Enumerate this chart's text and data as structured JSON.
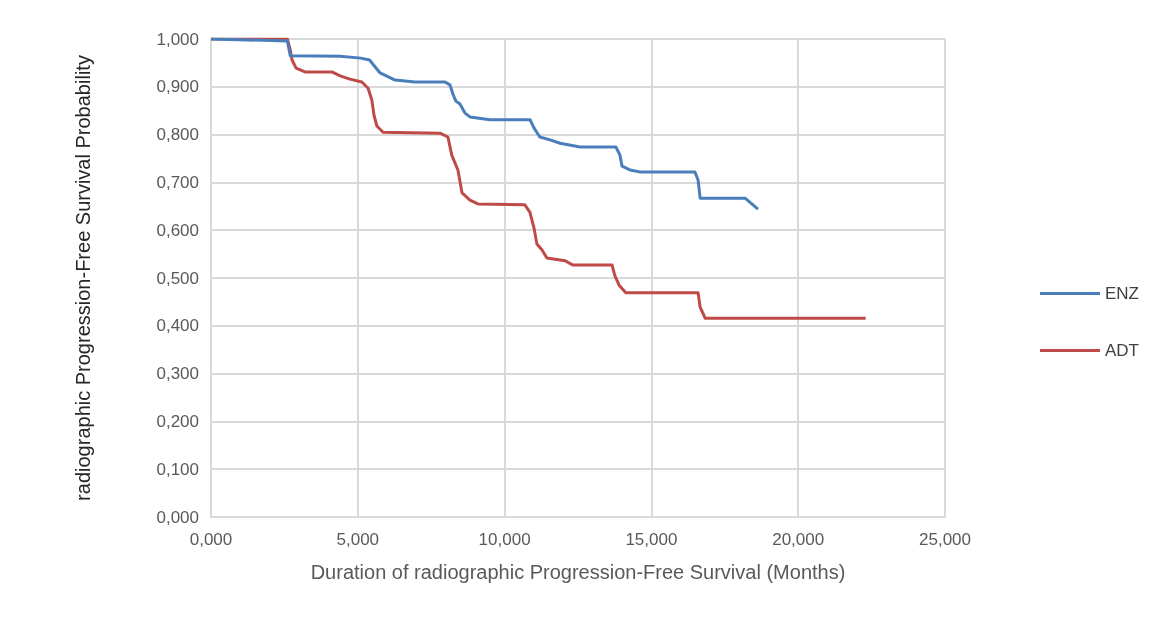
{
  "chart_data": {
    "type": "line",
    "xlabel": "Duration of radiographic Progression-Free Survival (Months)",
    "ylabel": "radiographic Progression-Free Survival Probability",
    "xlim": [
      0,
      25
    ],
    "xticks": [
      {
        "value": 0,
        "label": "0,000"
      },
      {
        "value": 5,
        "label": "5,000"
      },
      {
        "value": 10,
        "label": "10,000"
      },
      {
        "value": 15,
        "label": "15,000"
      },
      {
        "value": 20,
        "label": "20,000"
      },
      {
        "value": 25,
        "label": "25,000"
      }
    ],
    "ylim": [
      0,
      1
    ],
    "yticks": [
      {
        "value": 0,
        "label": "0,000"
      },
      {
        "value": 0.1,
        "label": "0,100"
      },
      {
        "value": 0.2,
        "label": "0,200"
      },
      {
        "value": 0.3,
        "label": "0,300"
      },
      {
        "value": 0.4,
        "label": "0,400"
      },
      {
        "value": 0.5,
        "label": "0,500"
      },
      {
        "value": 0.6,
        "label": "0,600"
      },
      {
        "value": 0.7,
        "label": "0,700"
      },
      {
        "value": 0.8,
        "label": "0,800"
      },
      {
        "value": 0.9,
        "label": "0,900"
      },
      {
        "value": 1,
        "label": "1,000"
      }
    ],
    "grid": true,
    "legend": "right",
    "marker": "none",
    "series": [
      {
        "name": "ENZ",
        "color": "#4a7ebb",
        "x": [
          0,
          2.6,
          2.7,
          4.4,
          5.1,
          5.4,
          5.6,
          5.76,
          6.27,
          6.95,
          7.97,
          8.14,
          8.24,
          8.34,
          8.48,
          8.65,
          8.82,
          9.5,
          10.87,
          11.0,
          11.2,
          11.55,
          11.89,
          12.57,
          13.79,
          13.93,
          14.0,
          14.27,
          14.6,
          16.48,
          16.59,
          16.66,
          18.19,
          18.63
        ],
        "values": [
          1.0,
          0.996,
          0.965,
          0.964,
          0.96,
          0.956,
          0.941,
          0.929,
          0.914,
          0.91,
          0.91,
          0.904,
          0.885,
          0.87,
          0.864,
          0.845,
          0.837,
          0.831,
          0.831,
          0.814,
          0.795,
          0.789,
          0.782,
          0.774,
          0.774,
          0.757,
          0.734,
          0.726,
          0.722,
          0.722,
          0.705,
          0.667,
          0.667,
          0.644
        ]
      },
      {
        "name": "ADT",
        "color": "#be4b48",
        "x": [
          0,
          2.6,
          2.7,
          2.76,
          2.9,
          3.2,
          4.12,
          4.4,
          4.73,
          5.14,
          5.35,
          5.48,
          5.55,
          5.65,
          5.86,
          7.8,
          8.07,
          8.2,
          8.41,
          8.55,
          8.82,
          9.09,
          10.69,
          10.86,
          11.0,
          11.1,
          11.27,
          11.44,
          12.06,
          12.33,
          13.66,
          13.76,
          13.9,
          14.13,
          16.59,
          16.66,
          16.83,
          22.3
        ],
        "values": [
          1.0,
          1.0,
          0.977,
          0.956,
          0.939,
          0.931,
          0.931,
          0.923,
          0.916,
          0.91,
          0.897,
          0.872,
          0.841,
          0.818,
          0.805,
          0.803,
          0.795,
          0.757,
          0.726,
          0.678,
          0.663,
          0.655,
          0.653,
          0.638,
          0.605,
          0.571,
          0.559,
          0.542,
          0.536,
          0.527,
          0.527,
          0.504,
          0.485,
          0.469,
          0.469,
          0.439,
          0.416,
          0.416
        ]
      }
    ]
  }
}
